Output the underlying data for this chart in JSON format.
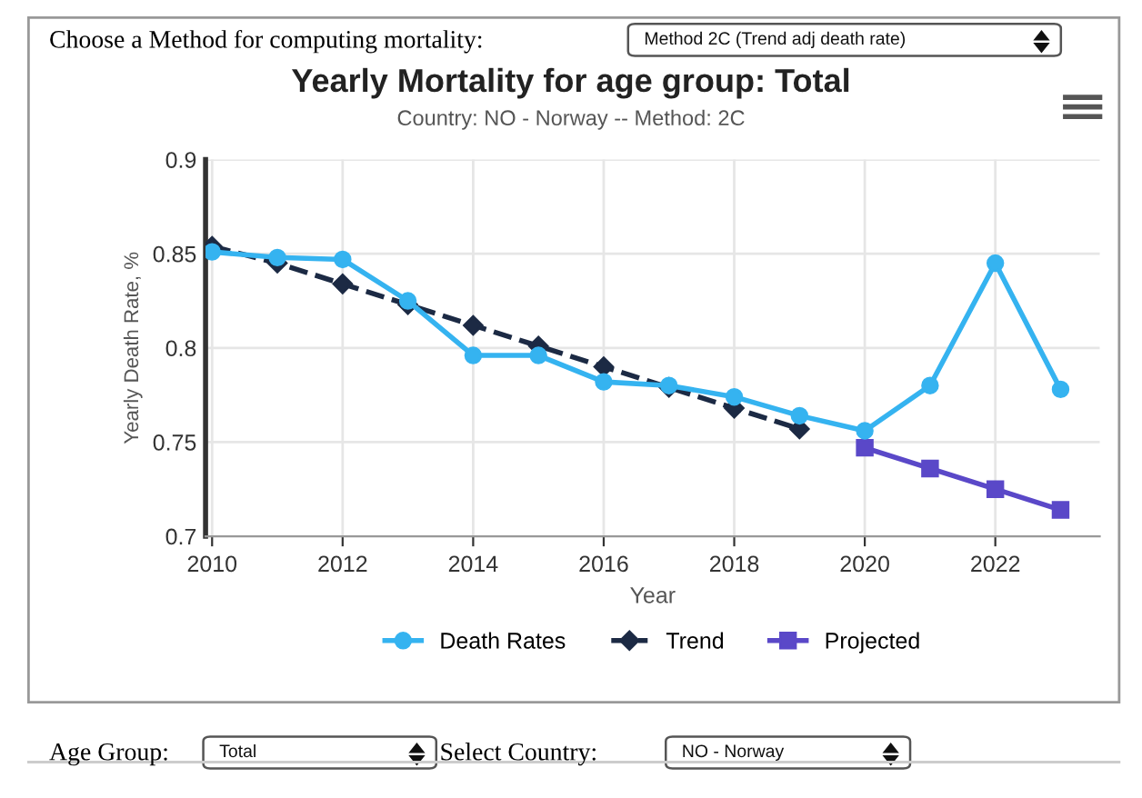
{
  "chart_data": {
    "type": "line",
    "title": "Yearly Mortality for age group: Total",
    "subtitle": "Country: NO - Norway -- Method: 2C",
    "xlabel": "Year",
    "ylabel": "Yearly Death Rate, %",
    "annotations": [
      "Choose a Method for computing mortality:",
      "Method 2C (Trend adj death rate)",
      "Age Group:",
      "Total",
      "Select Country:",
      "NO - Norway"
    ],
    "series": [
      {
        "name": "Death Rates",
        "color": "#35b3f0",
        "marker": "circle",
        "line_style": "solid",
        "x": [
          2010,
          2011,
          2012,
          2013,
          2014,
          2015,
          2016,
          2017,
          2018,
          2019,
          2020,
          2021,
          2022,
          2023
        ],
        "values": [
          0.851,
          0.848,
          0.847,
          0.825,
          0.796,
          0.796,
          0.782,
          0.78,
          0.774,
          0.764,
          0.756,
          0.78,
          0.845,
          0.778
        ]
      },
      {
        "name": "Trend",
        "color": "#1c2a44",
        "marker": "diamond",
        "line_style": "dashed",
        "x": [
          2010,
          2011,
          2012,
          2013,
          2014,
          2015,
          2016,
          2017,
          2018,
          2019
        ],
        "values": [
          0.854,
          0.845,
          0.834,
          0.823,
          0.812,
          0.801,
          0.79,
          0.779,
          0.768,
          0.757
        ]
      },
      {
        "name": "Projected",
        "color": "#5a48c8",
        "marker": "square",
        "line_style": "solid",
        "x": [
          2020,
          2021,
          2022,
          2023
        ],
        "values": [
          0.747,
          0.736,
          0.725,
          0.714
        ]
      }
    ],
    "xlim": [
      2009.9,
      2023.6
    ],
    "xticks": [
      2010,
      2012,
      2014,
      2016,
      2018,
      2020,
      2022
    ],
    "ylim": [
      0.7,
      0.9
    ],
    "yticks": [
      0.7,
      0.75,
      0.8,
      0.85,
      0.9
    ],
    "grid": true,
    "legend": "bottom"
  }
}
